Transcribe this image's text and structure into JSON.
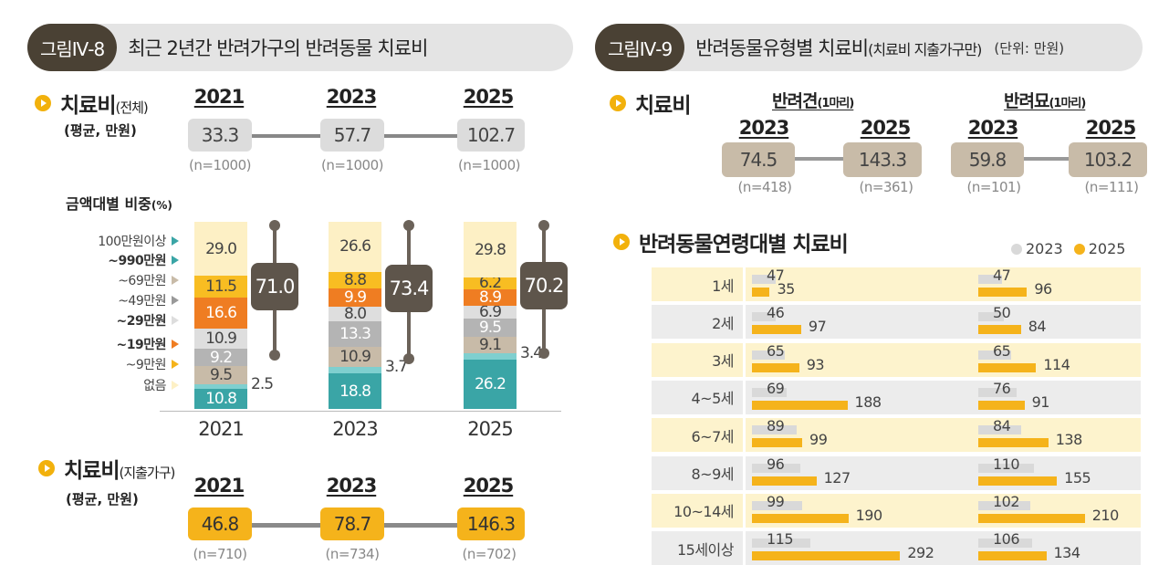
{
  "fig8": {
    "badge": "그림Ⅳ-8",
    "title": "최근 2년간 반려가구의 반려동물 치료비",
    "total": {
      "heading": "치료비",
      "heading_sub": "(전체)",
      "unit_label": "(평균, 만원)",
      "years": [
        "2021",
        "2023",
        "2025"
      ],
      "values": [
        "33.3",
        "57.7",
        "102.7"
      ],
      "n": [
        "(n=1000)",
        "(n=1000)",
        "(n=1000)"
      ]
    },
    "share": {
      "heading": "금액대별 비중",
      "heading_unit": "(%)"
    },
    "spending": {
      "heading": "치료비",
      "heading_sub": "(지출가구)",
      "unit_label": "(평균, 만원)",
      "years": [
        "2021",
        "2023",
        "2025"
      ],
      "values": [
        "46.8",
        "78.7",
        "146.3"
      ],
      "n": [
        "(n=710)",
        "(n=734)",
        "(n=702)"
      ]
    }
  },
  "fig9": {
    "badge": "그림Ⅳ-9",
    "title": "반려동물유형별 치료비",
    "title_sub": "(치료비 지출가구만)",
    "unit": "(단위: 만원)",
    "heading": "치료비",
    "dog": {
      "label": "반려견",
      "label_sub": "(1마리)",
      "years": [
        "2023",
        "2025"
      ],
      "values": [
        "74.5",
        "143.3"
      ],
      "n": [
        "(n=418)",
        "(n=361)"
      ]
    },
    "cat": {
      "label": "반려묘",
      "label_sub": "(1마리)",
      "years": [
        "2023",
        "2025"
      ],
      "values": [
        "59.8",
        "103.2"
      ],
      "n": [
        "(n=101)",
        "(n=111)"
      ]
    },
    "age_heading": "반려동물연령대별 치료비",
    "legend": [
      "2023",
      "2025"
    ]
  },
  "colors": {
    "gold": "#f5b31b",
    "gray_bar": "#d9d9d9",
    "badge": "#4a4134",
    "teal": "#3aa5a6",
    "orange": "#ef7d22"
  },
  "chart_data": [
    {
      "type": "bar",
      "stacked": true,
      "title": "금액대별 비중(%)",
      "categories": [
        "2021",
        "2023",
        "2025"
      ],
      "series": [
        {
          "name": "100만원이상",
          "values": [
            10.8,
            18.8,
            26.2
          ]
        },
        {
          "name": "~990만원",
          "values": [
            2.5,
            3.7,
            3.4
          ]
        },
        {
          "name": "~69만원",
          "values": [
            9.5,
            10.9,
            9.1
          ]
        },
        {
          "name": "~49만원",
          "values": [
            9.2,
            13.3,
            9.5
          ]
        },
        {
          "name": "~29만원",
          "values": [
            10.9,
            8.0,
            6.9
          ]
        },
        {
          "name": "~19만원",
          "values": [
            16.6,
            9.9,
            8.9
          ]
        },
        {
          "name": "~9만원",
          "values": [
            11.5,
            8.8,
            6.2
          ]
        },
        {
          "name": "없음",
          "values": [
            29.0,
            26.6,
            29.8
          ]
        }
      ],
      "bracket_totals": [
        "71.0",
        "73.4",
        "70.2"
      ],
      "value_labels": [
        [
          "10.8",
          "2.5",
          "9.5",
          "9.2",
          "10.9",
          "16.6",
          "11.5",
          "29.0"
        ],
        [
          "18.8",
          "3.7",
          "10.9",
          "13.3",
          "8.0",
          "9.9",
          "8.8",
          "26.6"
        ],
        [
          "26.2",
          "3.4",
          "9.1",
          "9.5",
          "6.9",
          "8.9",
          "6.2",
          "29.8"
        ]
      ],
      "series_colors": [
        "#3aa5a6",
        "#7fcfcf",
        "#c8bba8",
        "#b4b4b4",
        "#dedede",
        "#ef7d22",
        "#f8bd22",
        "#fdf0c5"
      ]
    },
    {
      "type": "bar",
      "orientation": "horizontal",
      "title": "반려동물연령대별 치료비 - 반려견",
      "categories": [
        "1세",
        "2세",
        "3세",
        "4~5세",
        "6~7세",
        "8~9세",
        "10~14세",
        "15세이상"
      ],
      "series": [
        {
          "name": "2023",
          "values": [
            47,
            46,
            65,
            69,
            89,
            96,
            99,
            115
          ]
        },
        {
          "name": "2025",
          "values": [
            35,
            97,
            93,
            188,
            99,
            127,
            190,
            292
          ]
        }
      ]
    },
    {
      "type": "bar",
      "orientation": "horizontal",
      "title": "반려동물연령대별 치료비 - 반려묘",
      "categories": [
        "1세",
        "2세",
        "3세",
        "4~5세",
        "6~7세",
        "8~9세",
        "10~14세",
        "15세이상"
      ],
      "series": [
        {
          "name": "2023",
          "values": [
            47,
            50,
            65,
            76,
            84,
            110,
            102,
            106
          ]
        },
        {
          "name": "2025",
          "values": [
            96,
            84,
            114,
            91,
            138,
            155,
            210,
            134
          ]
        }
      ]
    }
  ]
}
